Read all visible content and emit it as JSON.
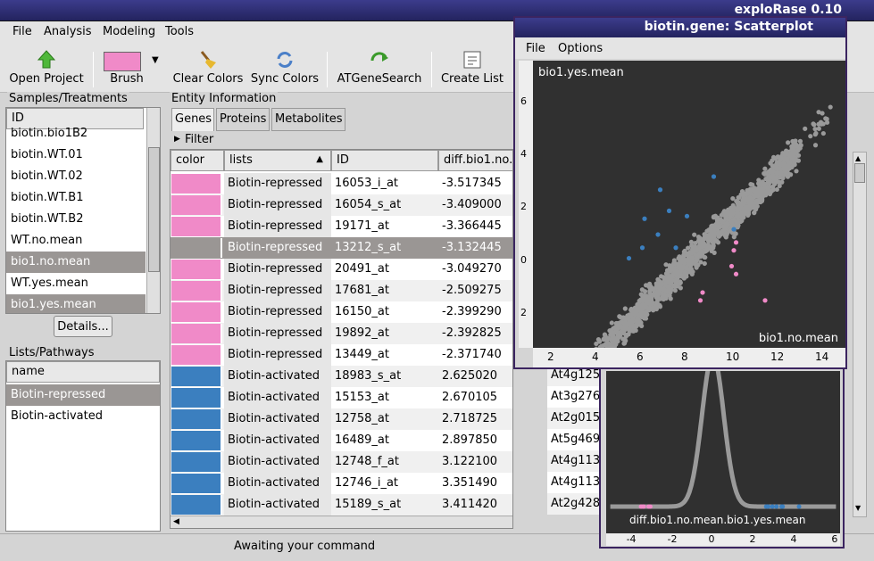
{
  "app": {
    "title": "exploRase 0.10"
  },
  "menu": [
    "File",
    "Analysis",
    "Modeling",
    "Tools"
  ],
  "toolbar": {
    "open_project": "Open Project",
    "brush": "Brush",
    "brush_color": "#f08ac8",
    "clear_colors": "Clear Colors",
    "sync_colors": "Sync Colors",
    "atgenesearch": "ATGeneSearch",
    "create_list": "Create List"
  },
  "samples": {
    "title": "Samples/Treatments",
    "header": "ID",
    "items": [
      "biotin.bio1B2",
      "biotin.WT.01",
      "biotin.WT.02",
      "biotin.WT.B1",
      "biotin.WT.B2",
      "WT.no.mean",
      "bio1.no.mean",
      "WT.yes.mean",
      "bio1.yes.mean"
    ],
    "details": "Details..."
  },
  "lists": {
    "title": "Lists/Pathways",
    "header": "name",
    "items": [
      "Biotin-repressed",
      "Biotin-activated"
    ]
  },
  "entity": {
    "title": "Entity Information",
    "tabs": [
      "Genes",
      "Proteins",
      "Metabolites"
    ],
    "filter": "Filter",
    "columns": [
      "color",
      "lists",
      "ID",
      "diff.bio1.no..."
    ],
    "rows": [
      {
        "list": "Biotin-repressed",
        "id": "16053_i_at",
        "diff": "-3.517345",
        "locus": ""
      },
      {
        "list": "Biotin-repressed",
        "id": "16054_s_at",
        "diff": "-3.409000",
        "locus": ""
      },
      {
        "list": "Biotin-repressed",
        "id": "19171_at",
        "diff": "-3.366445",
        "locus": ""
      },
      {
        "list": "Biotin-repressed",
        "id": "13212_s_at",
        "diff": "-3.132445",
        "locus": ""
      },
      {
        "list": "Biotin-repressed",
        "id": "20491_at",
        "diff": "-3.049270",
        "locus": ""
      },
      {
        "list": "Biotin-repressed",
        "id": "17681_at",
        "diff": "-2.509275",
        "locus": ""
      },
      {
        "list": "Biotin-repressed",
        "id": "16150_at",
        "diff": "-2.399290",
        "locus": ""
      },
      {
        "list": "Biotin-repressed",
        "id": "19892_at",
        "diff": "-2.392825",
        "locus": ""
      },
      {
        "list": "Biotin-repressed",
        "id": "13449_at",
        "diff": "-2.371740",
        "locus": ""
      },
      {
        "list": "Biotin-activated",
        "id": "18983_s_at",
        "diff": "2.625020",
        "locus": "At4g125"
      },
      {
        "list": "Biotin-activated",
        "id": "15153_at",
        "diff": "2.670105",
        "locus": "At3g276"
      },
      {
        "list": "Biotin-activated",
        "id": "12758_at",
        "diff": "2.718725",
        "locus": "At2g015"
      },
      {
        "list": "Biotin-activated",
        "id": "16489_at",
        "diff": "2.897850",
        "locus": "At5g469"
      },
      {
        "list": "Biotin-activated",
        "id": "12748_f_at",
        "diff": "3.122100",
        "locus": "At4g113"
      },
      {
        "list": "Biotin-activated",
        "id": "12746_i_at",
        "diff": "3.351490",
        "locus": "At4g113"
      },
      {
        "list": "Biotin-activated",
        "id": "15189_s_at",
        "diff": "3.411420",
        "locus": "At2g428"
      }
    ]
  },
  "colors": {
    "pink": "#f08ac8",
    "blue": "#3b7fbf",
    "selected": "#9a9694",
    "plot_bg": "#303030",
    "point": "#9a9a9a"
  },
  "status": "Awaiting your command",
  "scatter": {
    "title": "biotin.gene: Scatterplot",
    "menu": [
      "File",
      "Options"
    ],
    "ylabel": "bio1.yes.mean",
    "xlabel": "bio1.no.mean",
    "xticks": [
      "2",
      "4",
      "6",
      "8",
      "10",
      "12",
      "14"
    ],
    "yticks": [
      "6",
      "4",
      "2",
      "0",
      "-2"
    ]
  },
  "density": {
    "xlabel": "diff.bio1.no.mean.bio1.yes.mean",
    "xticks": [
      "-4",
      "-2",
      "0",
      "2",
      "4",
      "6"
    ]
  }
}
